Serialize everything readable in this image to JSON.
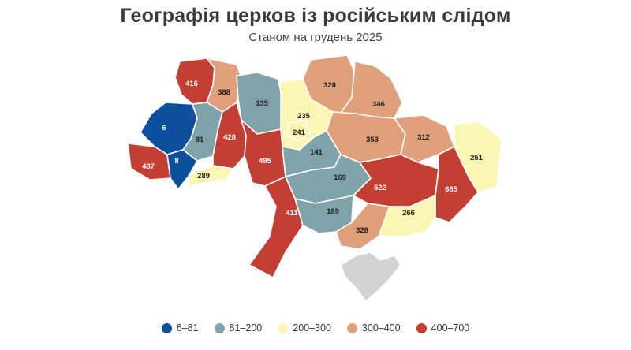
{
  "header": {
    "title": "Географія церков із російським слідом",
    "subtitle": "Станом на грудень 2025"
  },
  "legend": [
    {
      "label": "6–81",
      "color": "#0d4f9c"
    },
    {
      "label": "81–200",
      "color": "#7fa3a8"
    },
    {
      "label": "200–300",
      "color": "#fbf6b4"
    },
    {
      "label": "300–400",
      "color": "#dfa07a"
    },
    {
      "label": "400–700",
      "color": "#c33e33"
    }
  ],
  "regions": [
    {
      "id": "volyn",
      "value": "416",
      "bin": 4
    },
    {
      "id": "rivne",
      "value": "388",
      "bin": 3
    },
    {
      "id": "zhytomyr",
      "value": "135",
      "bin": 1
    },
    {
      "id": "kyiv-oblast",
      "value": "235",
      "bin": 2
    },
    {
      "id": "kyiv-city",
      "value": "241",
      "bin": 2
    },
    {
      "id": "chernihiv",
      "value": "328",
      "bin": 3
    },
    {
      "id": "sumy",
      "value": "346",
      "bin": 3
    },
    {
      "id": "poltava",
      "value": "353",
      "bin": 3
    },
    {
      "id": "kharkiv",
      "value": "312",
      "bin": 3
    },
    {
      "id": "luhansk",
      "value": "251",
      "bin": 2
    },
    {
      "id": "lviv",
      "value": "6",
      "bin": 0
    },
    {
      "id": "ternopil",
      "value": "81",
      "bin": 1
    },
    {
      "id": "khmelnytskyi",
      "value": "428",
      "bin": 4
    },
    {
      "id": "vinnytsia",
      "value": "495",
      "bin": 4
    },
    {
      "id": "cherkasy",
      "value": "141",
      "bin": 1
    },
    {
      "id": "kirovohrad",
      "value": "169",
      "bin": 1
    },
    {
      "id": "dnipropetrovsk",
      "value": "522",
      "bin": 4
    },
    {
      "id": "donetsk",
      "value": "685",
      "bin": 4
    },
    {
      "id": "zakarpattia",
      "value": "487",
      "bin": 4
    },
    {
      "id": "ivano-frankivsk",
      "value": "8",
      "bin": 0
    },
    {
      "id": "chernivtsi",
      "value": "289",
      "bin": 2
    },
    {
      "id": "odesa",
      "value": "411",
      "bin": 4
    },
    {
      "id": "mykolaiv",
      "value": "189",
      "bin": 1
    },
    {
      "id": "kherson",
      "value": "328",
      "bin": 3
    },
    {
      "id": "zaporizhzhia",
      "value": "266",
      "bin": 2
    },
    {
      "id": "crimea",
      "value": "",
      "bin": -1
    }
  ],
  "colors": {
    "no_data": "#d3d3d3"
  }
}
